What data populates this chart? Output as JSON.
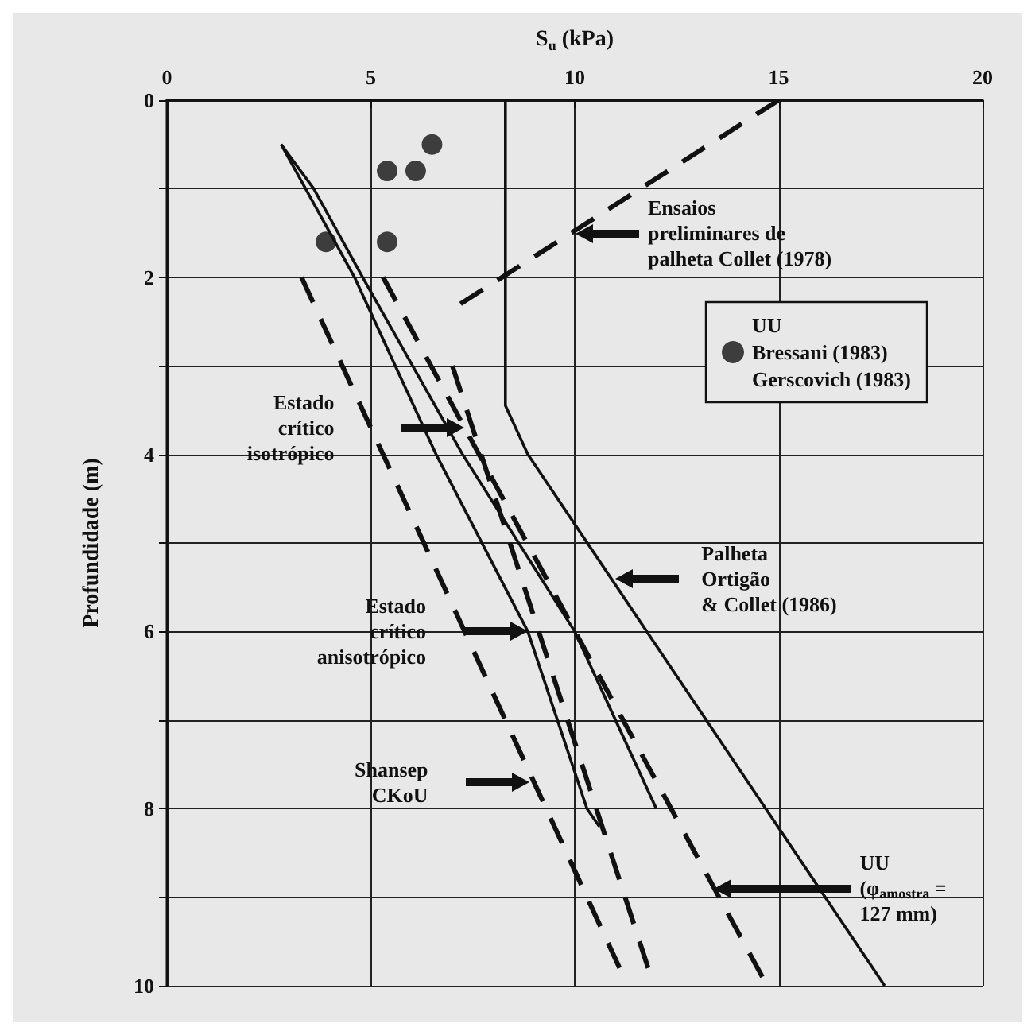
{
  "chart_data": {
    "type": "line",
    "xlabel": "S$_{u}$ (kPa)",
    "ylabel": "Profundidade (m)",
    "xlim": [
      0,
      20
    ],
    "xticks": [
      0,
      5,
      10,
      15,
      20
    ],
    "ylim": [
      10,
      0
    ],
    "yticks": [
      0,
      {
        "value": 1,
        "label": null
      },
      2,
      {
        "value": 3,
        "label": null
      },
      4,
      {
        "value": 5,
        "label": null
      },
      6,
      {
        "value": 7,
        "label": null
      },
      8,
      {
        "value": 9,
        "label": null
      },
      10
    ],
    "grid": true,
    "legend": "right",
    "marker": "none",
    "series": [
      {
        "type": "line",
        "color": "#111111",
        "line_style": "solid",
        "x": [
          8.3,
          8.3,
          8.85,
          17.6
        ],
        "values": [
          0,
          3.45,
          4.0,
          10
        ]
      },
      {
        "type": "line",
        "color": "#111111",
        "line_style": "dashed",
        "x": [
          15,
          7.2
        ],
        "values": [
          0,
          2.3
        ]
      },
      {
        "type": "line",
        "color": "#111111",
        "line_style": "solid",
        "x": [
          2.8,
          3.6,
          4.8,
          7.25,
          10.0,
          12.0
        ],
        "values": [
          0.5,
          1.0,
          2.0,
          4.0,
          6.0,
          8.0
        ]
      },
      {
        "type": "line",
        "color": "#111111",
        "line_style": "solid",
        "x": [
          2.8,
          4.6,
          6.6,
          8.85,
          10.3,
          10.6
        ],
        "values": [
          0.5,
          2.0,
          4.0,
          6.0,
          8.0,
          8.2
        ]
      },
      {
        "type": "line",
        "color": "#111111",
        "line_style": "dashed",
        "x": [
          5.3,
          14.6
        ],
        "values": [
          2.0,
          9.9
        ]
      },
      {
        "type": "line",
        "color": "#111111",
        "line_style": "dashed",
        "x": [
          3.3,
          11.1
        ],
        "values": [
          2.0,
          9.8
        ]
      },
      {
        "type": "line",
        "color": "#111111",
        "line_style": "dashed",
        "x": [
          7.0,
          11.8
        ],
        "values": [
          3.0,
          9.8
        ]
      },
      {
        "type": "scatter",
        "name": "UU\nBressani (1983)\nGerscovich (1983)",
        "color": "#111111",
        "marker": "circle",
        "x": [
          6.5,
          5.4,
          6.1,
          3.9,
          5.4
        ],
        "values": [
          0.5,
          0.8,
          0.8,
          1.6,
          1.6
        ]
      }
    ],
    "annotations": [
      "Ensaios\npreliminares de\npalheta Collet (1978)",
      "Estado\ncrítico\nisotrópico",
      "Estado\ncrítico\nanisotrópico",
      "Shansep\nCKoU",
      "Palheta\nOrtigão\n& Collet (1986)",
      "UU\n(φ$_{amostra}$ =\n127 mm)"
    ]
  }
}
